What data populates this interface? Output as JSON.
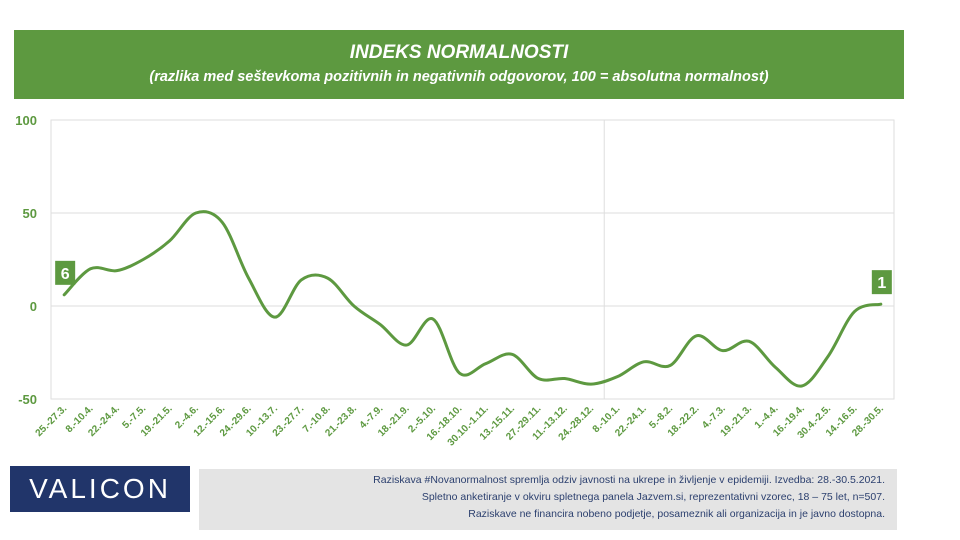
{
  "header": {
    "title": "INDEKS NORMALNOSTI",
    "subtitle": "(razlika med seštevkoma pozitivnih in negativnih odgovorov, 100 = absolutna normalnost)"
  },
  "chart_data": {
    "type": "line",
    "title": "INDEKS NORMALNOSTI",
    "subtitle": "(razlika med seštevkoma pozitivnih in negativnih odgovorov, 100 = absolutna normalnost)",
    "categories": [
      "25.-27.3.",
      "8.-10.4.",
      "22.-24.4.",
      "5.-7.5.",
      "19.-21.5.",
      "2.-4.6.",
      "12.-15.6.",
      "24.-29.6.",
      "10.-13.7.",
      "23.-27.7.",
      "7.-10.8.",
      "21.-23.8.",
      "4.-7.9.",
      "18.-21.9.",
      "2.-5.10.",
      "16.-18.10.",
      "30.10.-1.11.",
      "13.-15.11.",
      "27.-29.11.",
      "11.-13.12.",
      "24.-28.12.",
      "8.-10.1.",
      "22.-24.1.",
      "5.-8.2.",
      "18.-22.2.",
      "4.-7.3.",
      "19.-21.3.",
      "1.-4.4.",
      "16.-19.4.",
      "30.4.-2.5.",
      "14.-16.5.",
      "28.-30.5."
    ],
    "series": [
      {
        "values": [
          6,
          20,
          19,
          25,
          35,
          50,
          45,
          15,
          -6,
          14,
          15,
          0,
          -10,
          -21,
          -7,
          -36,
          -31,
          -26,
          -39,
          -39,
          -42,
          -38,
          -30,
          -32,
          -16,
          -24,
          -19,
          -33,
          -43,
          -27,
          -3,
          1
        ]
      }
    ],
    "ylim": [
      -50,
      100
    ],
    "yticks": [
      100,
      50,
      0,
      -50
    ],
    "xlabel": "",
    "ylabel": "",
    "grid": true,
    "data_labels": [
      {
        "index": 0,
        "text": "6"
      },
      {
        "index": 31,
        "text": "1"
      }
    ],
    "colors": {
      "line": "#5d9940",
      "tick_text": "#5d9940",
      "grid": "#dedede"
    }
  },
  "logo_text": "VALICON",
  "footnote": [
    "Raziskava #Novanormalnost spremlja odziv javnosti na ukrepe in življenje v epidemiji. Izvedba: 28.-30.5.2021.",
    "Spletno anketiranje v okviru spletnega panela Jazvem.si, reprezentativni vzorec, 18 – 75 let, n=507.",
    "Raziskave ne financira nobeno podjetje, posameznik ali organizacija in je javno dostopna."
  ]
}
